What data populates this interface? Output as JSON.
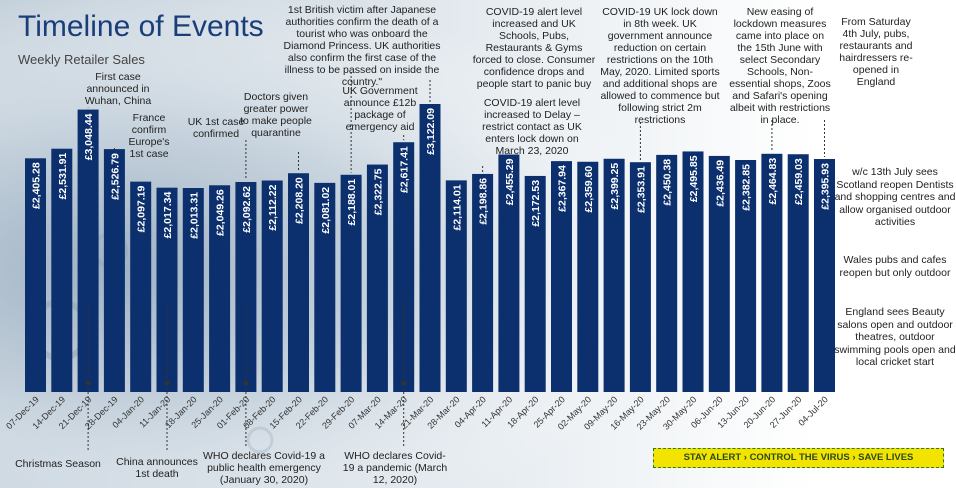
{
  "title": "Timeline of Events",
  "subtitle": "Weekly Retailer Sales",
  "banner": "STAY ALERT › CONTROL THE VIRUS › SAVE LIVES",
  "colors": {
    "bar": "#0c2f6e",
    "bar_text": "#ffffff",
    "title": "#1a3e7a",
    "banner_bg": "#f3e300"
  },
  "chart_data": {
    "type": "bar",
    "title": "Timeline of Events",
    "subtitle": "Weekly Retailer Sales",
    "ylim": [
      0,
      3500
    ],
    "categories": [
      "07-Dec-19",
      "14-Dec-19",
      "21-Dec-19",
      "28-Dec-19",
      "04-Jan-20",
      "11-Jan-20",
      "18-Jan-20",
      "25-Jan-20",
      "01-Feb-20",
      "08-Feb-20",
      "15-Feb-20",
      "22-Feb-20",
      "29-Feb-20",
      "07-Mar-20",
      "14-Mar-20",
      "21-Mar-20",
      "28-Mar-20",
      "04-Apr-20",
      "11-Apr-20",
      "18-Apr-20",
      "25-Apr-20",
      "02-May-20",
      "09-May-20",
      "16-May-20",
      "23-May-20",
      "30-May-20",
      "06-Jun-20",
      "13-Jun-20",
      "20-Jun-20",
      "27-Jun-20",
      "04-Jul-20"
    ],
    "values": [
      2405.28,
      2531.91,
      3048.44,
      2526.79,
      2097.19,
      2017.34,
      2013.31,
      2049.26,
      2092.62,
      2112.22,
      2208.2,
      2081.02,
      2188.01,
      2322.75,
      2617.41,
      3122.09,
      2114.01,
      2198.86,
      2455.29,
      2172.53,
      2367.94,
      2359.6,
      2399.25,
      2353.91,
      2450.38,
      2495.85,
      2436.49,
      2382.85,
      2464.83,
      2459.03,
      2395.93
    ],
    "labels": [
      "£2,405.28",
      "£2,531.91",
      "£3,048.44",
      "£2,526.79",
      "£2,097.19",
      "£2,017.34",
      "£2,013.31",
      "£2,049.26",
      "£2,092.62",
      "£2,112.22",
      "£2,208.20",
      "£2,081.02",
      "£2,188.01",
      "£2,322.75",
      "£2,617.41",
      "£3,122.09",
      "£2,114.01",
      "£2,198.86",
      "£2,455.29",
      "£2,172.53",
      "£2,367.94",
      "£2,359.60",
      "£2,399.25",
      "£2,353.91",
      "£2,450.38",
      "£2,495.85",
      "£2,436.49",
      "£2,382.85",
      "£2,464.83",
      "£2,459.03",
      "£2,395.93"
    ]
  },
  "annotations": {
    "top": [
      {
        "id": "first-case",
        "text": "First case announced in Wuhan, China",
        "bar": 2
      },
      {
        "id": "france",
        "text": "France confirm Europe's 1st case",
        "bar": 3
      },
      {
        "id": "uk-first",
        "text": "UK 1st case confirmed",
        "bar": 8
      },
      {
        "id": "doctors",
        "text": "Doctors given greater power to make people quarantine",
        "bar": 10
      },
      {
        "id": "diamond",
        "text": "1st British victim after Japanese authorities confirm the death of a tourist who was onboard the Diamond Princess. UK authorities also confirm the first case of the illness to be passed on inside the country.\"",
        "bar": 12
      },
      {
        "id": "12b",
        "text": "UK Government announce £12b package of emergency aid",
        "bar": 14
      },
      {
        "id": "alert-schools",
        "text": "COVID-19 alert level increased and UK Schools, Pubs, Restaurants & Gyms forced to close. Consumer confidence drops and people start to panic buy",
        "bar": 15
      },
      {
        "id": "delay",
        "text": "COVID-19 alert level increased to Delay – restrict contact as UK enters lock down on March 23, 2020",
        "bar": 17
      },
      {
        "id": "lockdown-8",
        "text": "COVID-19 UK lock down in 8th week. UK government announce reduction on certain restrictions on the 10th May, 2020. Limited sports and additional shops are allowed to commence but following strict 2m restrictions",
        "bar": 23
      },
      {
        "id": "easing",
        "text": "New easing of lockdown measures came into place on the 15th June with select Secondary Schools, Non-essential shops, Zoos and Safari's opening albeit with restrictions in place.",
        "bar": 28
      },
      {
        "id": "4th-july",
        "text": "From Saturday 4th July, pubs, restaurants and hairdressers re-opened in England",
        "bar": 30
      }
    ],
    "bottom": [
      {
        "id": "christmas",
        "text": "Christmas Season",
        "bar": 2
      },
      {
        "id": "china-death",
        "text": "China announces 1st death",
        "bar": 5
      },
      {
        "id": "who-emergency",
        "text": "WHO declares Covid-19 a public health emergency (January 30, 2020)",
        "bar": 8
      },
      {
        "id": "who-pandemic",
        "text": "WHO declares Covid-19 a pandemic (March 12, 2020)",
        "bar": 14
      }
    ],
    "right": [
      {
        "id": "scotland",
        "text": "w/c 13th July sees Scotland reopen Dentists and shopping centres and allow organised outdoor activities"
      },
      {
        "id": "wales",
        "text": "Wales pubs and cafes reopen but only outdoor"
      },
      {
        "id": "england-beauty",
        "text": "England sees Beauty salons open and outdoor theatres, outdoor swimming pools open and local cricket start"
      }
    ]
  }
}
